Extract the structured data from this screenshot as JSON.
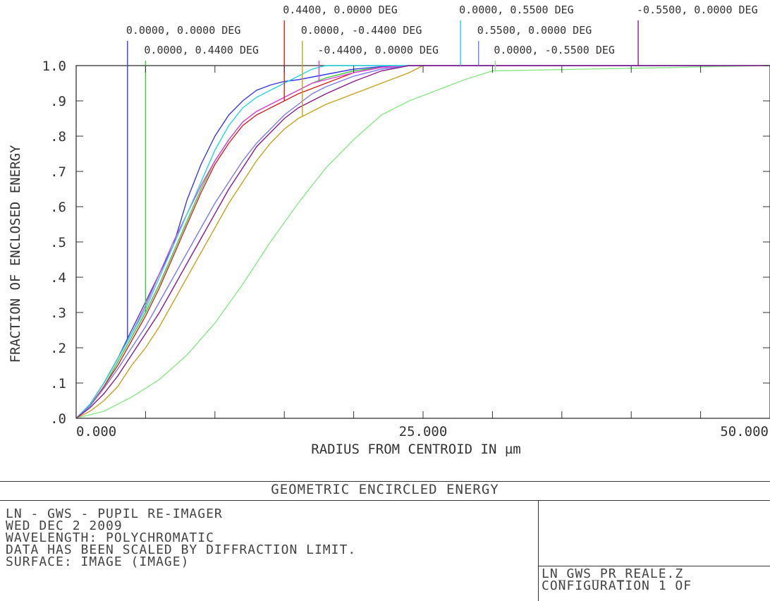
{
  "chart_data": {
    "type": "line",
    "title": "GEOMETRIC ENCIRCLED ENERGY",
    "xlabel": "RADIUS FROM CENTROID IN µm",
    "ylabel": "FRACTION OF ENCLOSED ENERGY",
    "xlim": [
      0,
      50
    ],
    "ylim": [
      0,
      1.0
    ],
    "x_ticks": [
      "0.000",
      "25.000",
      "50.000"
    ],
    "y_ticks": [
      ".0",
      ".1",
      ".2",
      ".3",
      ".4",
      ".5",
      ".6",
      ".7",
      ".8",
      ".9",
      "1.0"
    ],
    "grid": false,
    "legend": "field labels along top of plot with vertical marker lines",
    "series": [
      {
        "name": "0.0000, 0.0000 DEG",
        "color": "#3a3ae6",
        "marker_x": 3.7,
        "x": [
          0,
          1,
          2,
          3,
          4,
          5,
          6,
          7,
          8,
          9,
          10,
          11,
          12,
          13,
          14,
          15,
          16,
          18,
          20,
          22,
          24,
          50
        ],
        "y": [
          0,
          0.04,
          0.1,
          0.17,
          0.25,
          0.33,
          0.41,
          0.49,
          0.62,
          0.72,
          0.8,
          0.86,
          0.9,
          0.93,
          0.945,
          0.955,
          0.96,
          0.975,
          0.99,
          0.997,
          1.0,
          1.0
        ]
      },
      {
        "name": "0.0000, 0.4400 DEG",
        "color": "#33cc33",
        "marker_x": 5.0,
        "x": [
          0,
          1,
          2,
          3,
          4,
          5,
          6,
          7,
          8,
          9,
          10,
          11,
          12,
          13,
          14,
          15,
          16,
          17,
          18,
          20,
          22,
          24,
          50
        ],
        "y": [
          0,
          0.035,
          0.09,
          0.16,
          0.23,
          0.3,
          0.38,
          0.47,
          0.56,
          0.65,
          0.73,
          0.79,
          0.84,
          0.87,
          0.89,
          0.91,
          0.93,
          0.95,
          0.965,
          0.985,
          0.995,
          1.0,
          1.0
        ]
      },
      {
        "name": "0.4400, 0.0000 DEG",
        "color": "#d92020",
        "marker_x": 15.0,
        "x": [
          0,
          1,
          2,
          3,
          4,
          5,
          6,
          7,
          8,
          9,
          10,
          11,
          12,
          13,
          14,
          15,
          16,
          18,
          20,
          22,
          24,
          50
        ],
        "y": [
          0,
          0.035,
          0.09,
          0.15,
          0.22,
          0.29,
          0.37,
          0.46,
          0.55,
          0.64,
          0.72,
          0.78,
          0.83,
          0.86,
          0.88,
          0.9,
          0.92,
          0.95,
          0.98,
          0.995,
          1.0,
          1.0
        ]
      },
      {
        "name": "0.0000, -0.4400 DEG",
        "color": "#c8a21e",
        "marker_x": 16.3,
        "x": [
          0,
          1,
          2,
          3,
          4,
          5,
          6,
          7,
          8,
          9,
          10,
          11,
          12,
          13,
          14,
          15,
          16,
          17,
          18,
          20,
          22,
          24,
          25,
          50
        ],
        "y": [
          0,
          0.02,
          0.05,
          0.09,
          0.15,
          0.2,
          0.26,
          0.33,
          0.4,
          0.47,
          0.54,
          0.61,
          0.67,
          0.73,
          0.78,
          0.82,
          0.85,
          0.87,
          0.89,
          0.92,
          0.95,
          0.98,
          1.0,
          1.0
        ]
      },
      {
        "name": "-0.4400, 0.0000 DEG",
        "color": "#e03ee0",
        "marker_x": 17.5,
        "x": [
          0,
          1,
          2,
          3,
          4,
          5,
          6,
          7,
          8,
          9,
          10,
          11,
          12,
          13,
          14,
          15,
          16,
          17,
          18,
          20,
          22,
          24,
          50
        ],
        "y": [
          0,
          0.04,
          0.1,
          0.17,
          0.24,
          0.32,
          0.41,
          0.5,
          0.58,
          0.66,
          0.73,
          0.79,
          0.84,
          0.87,
          0.89,
          0.91,
          0.93,
          0.95,
          0.96,
          0.98,
          0.995,
          1.0,
          1.0
        ]
      },
      {
        "name": "0.0000, 0.5500 DEG",
        "color": "#22d6e0",
        "marker_x": 27.7,
        "x": [
          0,
          1,
          2,
          3,
          4,
          5,
          6,
          7,
          8,
          9,
          10,
          11,
          12,
          13,
          14,
          15,
          16,
          17,
          18,
          20,
          50
        ],
        "y": [
          0,
          0.04,
          0.1,
          0.17,
          0.24,
          0.31,
          0.4,
          0.49,
          0.58,
          0.67,
          0.76,
          0.83,
          0.88,
          0.91,
          0.93,
          0.95,
          0.97,
          0.99,
          1.0,
          1.0,
          1.0
        ]
      },
      {
        "name": "0.5500, 0.0000 DEG",
        "color": "#7a7aee",
        "marker_x": 29.0,
        "x": [
          0,
          1,
          2,
          3,
          4,
          5,
          6,
          7,
          8,
          9,
          10,
          11,
          12,
          13,
          14,
          15,
          16,
          17,
          18,
          20,
          22,
          24,
          50
        ],
        "y": [
          0,
          0.035,
          0.085,
          0.14,
          0.2,
          0.26,
          0.33,
          0.4,
          0.47,
          0.54,
          0.61,
          0.67,
          0.73,
          0.78,
          0.82,
          0.86,
          0.89,
          0.92,
          0.94,
          0.97,
          0.99,
          1.0,
          1.0
        ]
      },
      {
        "name": "0.0000, -0.5500 DEG",
        "color": "#88e888",
        "marker_x": 30.2,
        "x": [
          0,
          2,
          4,
          6,
          8,
          10,
          12,
          14,
          16,
          18,
          20,
          22,
          24,
          26,
          28,
          30,
          50
        ],
        "y": [
          0,
          0.02,
          0.06,
          0.11,
          0.18,
          0.27,
          0.38,
          0.5,
          0.61,
          0.71,
          0.79,
          0.86,
          0.9,
          0.93,
          0.96,
          0.985,
          1.0
        ]
      },
      {
        "name": "-0.5500, 0.0000 DEG",
        "color": "#8a1a8a",
        "marker_x": 40.5,
        "x": [
          0,
          1,
          2,
          3,
          4,
          5,
          6,
          7,
          8,
          9,
          10,
          11,
          12,
          13,
          14,
          15,
          16,
          18,
          20,
          22,
          24,
          26,
          28,
          30,
          50
        ],
        "y": [
          0,
          0.03,
          0.07,
          0.12,
          0.18,
          0.24,
          0.3,
          0.37,
          0.44,
          0.51,
          0.58,
          0.65,
          0.71,
          0.77,
          0.81,
          0.85,
          0.88,
          0.92,
          0.955,
          0.985,
          1.0,
          1.0,
          1.0,
          1.0,
          1.0
        ]
      }
    ]
  },
  "info_panel": {
    "title": "GEOMETRIC ENCIRCLED ENERGY",
    "left_lines": [
      "LN - GWS - PUPIL RE-IMAGER",
      "WED DEC 2 2009",
      "WAVELENGTH: POLYCHROMATIC",
      "DATA HAS BEEN SCALED BY DIFFRACTION LIMIT.",
      "SURFACE: IMAGE (IMAGE)"
    ],
    "right_lines": [
      "LN_GWS_PR_REALE.Z",
      "CONFIGURATION 1 OF"
    ]
  }
}
